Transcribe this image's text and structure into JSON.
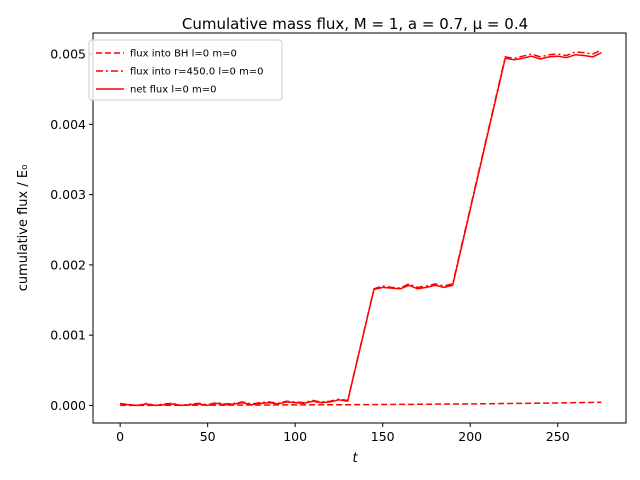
{
  "chart_data": {
    "type": "line",
    "title": "Cumulative mass flux, M = 1, a = 0.7, μ = 0.4",
    "xlabel": "t",
    "ylabel": "cumulative flux / E₀",
    "xlim": [
      -15.5,
      289
    ],
    "ylim": [
      -0.00025,
      0.0053
    ],
    "xticks": [
      "0",
      "50",
      "100",
      "150",
      "200",
      "250"
    ],
    "yticks": [
      "0.000",
      "0.001",
      "0.002",
      "0.003",
      "0.004",
      "0.005"
    ],
    "legend_position": "top-left",
    "grid": false,
    "series": [
      {
        "name": "flux into BH l=0 m=0",
        "style": "dashed",
        "color": "#ff0000",
        "x": [
          0,
          25,
          50,
          75,
          100,
          125,
          150,
          175,
          200,
          225,
          250,
          275
        ],
        "y": [
          0.0,
          2e-06,
          4e-06,
          6e-06,
          8e-06,
          1e-05,
          1.3e-05,
          1.7e-05,
          2.2e-05,
          2.8e-05,
          3.5e-05,
          4.5e-05
        ]
      },
      {
        "name": "flux into r=450.0 l=0 m=0",
        "style": "dashdot",
        "color": "#ff0000",
        "x": [
          0,
          5,
          10,
          15,
          20,
          25,
          30,
          35,
          40,
          45,
          50,
          55,
          60,
          65,
          70,
          75,
          80,
          85,
          90,
          95,
          100,
          105,
          110,
          115,
          120,
          125,
          130,
          145,
          150,
          155,
          160,
          165,
          170,
          175,
          180,
          185,
          190,
          220,
          225,
          230,
          235,
          240,
          245,
          250,
          255,
          260,
          265,
          270,
          275
        ],
        "y": [
          3e-05,
          1e-05,
          0.0,
          3e-05,
          0.0,
          2e-05,
          3e-05,
          0.0,
          2e-05,
          3e-05,
          1e-05,
          4e-05,
          2e-05,
          3e-05,
          5e-05,
          2e-05,
          4e-05,
          5e-05,
          3e-05,
          6e-05,
          5e-05,
          4e-05,
          7e-05,
          5e-05,
          6e-05,
          9e-05,
          7e-05,
          0.00166,
          0.0017,
          0.00168,
          0.00167,
          0.00173,
          0.00168,
          0.0017,
          0.00173,
          0.0017,
          0.00173,
          0.00496,
          0.00494,
          0.00497,
          0.005,
          0.00496,
          0.00499,
          0.005,
          0.00498,
          0.00503,
          0.00502,
          0.005,
          0.00506
        ]
      },
      {
        "name": "net flux l=0 m=0",
        "style": "solid",
        "color": "#ff0000",
        "x": [
          0,
          5,
          10,
          15,
          20,
          25,
          30,
          35,
          40,
          45,
          50,
          55,
          60,
          65,
          70,
          75,
          80,
          85,
          90,
          95,
          100,
          105,
          110,
          115,
          120,
          125,
          130,
          145,
          150,
          155,
          160,
          165,
          170,
          175,
          180,
          185,
          190,
          220,
          225,
          230,
          235,
          240,
          245,
          250,
          255,
          260,
          265,
          270,
          275
        ],
        "y": [
          2e-05,
          1e-05,
          0.0,
          2e-05,
          0.0,
          1e-05,
          2e-05,
          0.0,
          1e-05,
          2e-05,
          0.0,
          3e-05,
          1e-05,
          2e-05,
          4e-05,
          1e-05,
          3e-05,
          4e-05,
          2e-05,
          5e-05,
          4e-05,
          3e-05,
          6e-05,
          4e-05,
          5e-05,
          8e-05,
          6e-05,
          0.00165,
          0.00168,
          0.00167,
          0.00166,
          0.00171,
          0.00166,
          0.00168,
          0.00171,
          0.00168,
          0.00171,
          0.00494,
          0.00492,
          0.00494,
          0.00497,
          0.00493,
          0.00496,
          0.00497,
          0.00495,
          0.00499,
          0.00498,
          0.00496,
          0.00502
        ]
      }
    ]
  }
}
